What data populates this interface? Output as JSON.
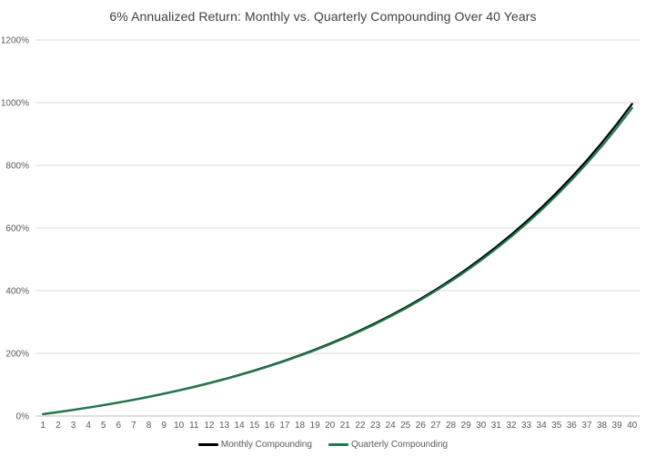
{
  "chart_data": {
    "type": "line",
    "title": "6% Annualized Return: Monthly vs. Quarterly Compounding Over 40 Years",
    "xlabel": "",
    "ylabel": "",
    "categories": [
      1,
      2,
      3,
      4,
      5,
      6,
      7,
      8,
      9,
      10,
      11,
      12,
      13,
      14,
      15,
      16,
      17,
      18,
      19,
      20,
      21,
      22,
      23,
      24,
      25,
      26,
      27,
      28,
      29,
      30,
      31,
      32,
      33,
      34,
      35,
      36,
      37,
      38,
      39,
      40
    ],
    "ylim": [
      0,
      1200
    ],
    "y_ticks": [
      0,
      200,
      400,
      600,
      800,
      1000,
      1200
    ],
    "y_tick_labels": [
      "0%",
      "200%",
      "400%",
      "600%",
      "800%",
      "1000%",
      "1200%"
    ],
    "grid": "horizontal",
    "legend_position": "bottom",
    "series": [
      {
        "name": "Monthly Compounding",
        "color": "#000000",
        "values_percent": [
          6.2,
          12.7,
          19.7,
          27.0,
          34.9,
          43.2,
          52.0,
          61.4,
          71.4,
          81.9,
          93.2,
          105.1,
          117.7,
          131.2,
          145.4,
          160.5,
          176.6,
          193.7,
          211.8,
          231.0,
          251.4,
          273.1,
          296.1,
          320.6,
          346.5,
          374.0,
          403.3,
          434.3,
          467.3,
          502.3,
          539.4,
          578.8,
          620.7,
          665.2,
          712.4,
          762.5,
          815.7,
          872.1,
          932.1,
          995.8
        ]
      },
      {
        "name": "Quarterly Compounding",
        "color": "#1F7A4D",
        "values_percent": [
          6.1,
          12.6,
          19.6,
          26.9,
          34.7,
          43.0,
          51.7,
          61.0,
          70.9,
          81.4,
          92.5,
          104.3,
          116.9,
          130.2,
          144.3,
          159.3,
          175.2,
          192.1,
          210.0,
          229.1,
          249.3,
          270.7,
          293.4,
          317.6,
          343.2,
          370.4,
          399.3,
          429.9,
          462.4,
          496.9,
          533.6,
          572.4,
          613.7,
          657.5,
          704.0,
          753.3,
          805.7,
          861.3,
          920.2,
          982.8
        ]
      }
    ],
    "colors": {
      "background": "#FFFFFF",
      "gridline": "#D9D9D9",
      "axis_line": "#BFBFBF",
      "tick_text": "#595959",
      "title_text": "#404040"
    }
  }
}
